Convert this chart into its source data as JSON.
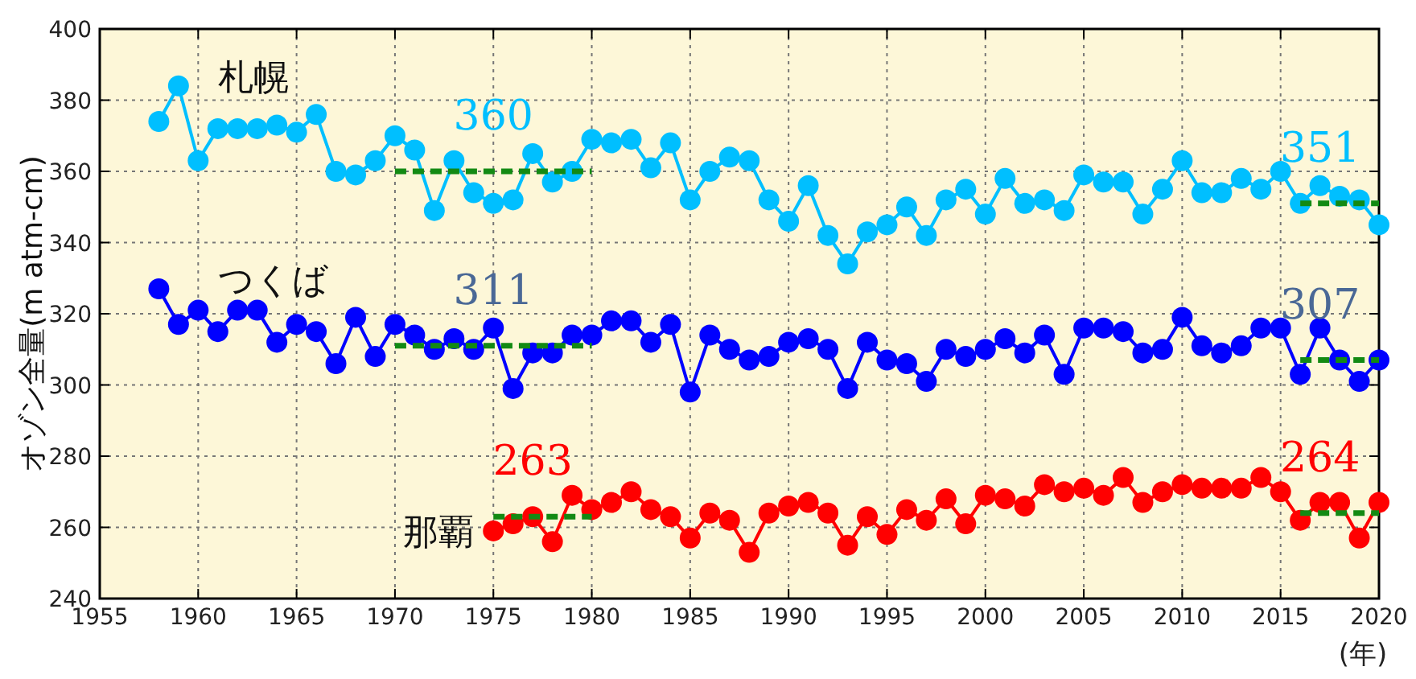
{
  "chart_data": {
    "type": "line",
    "ylabel": "オゾン全量(m atm-cm)",
    "xlabel": "(年)",
    "xlim": [
      1955,
      2020
    ],
    "ylim": [
      240,
      400
    ],
    "xticks": [
      1955,
      1960,
      1965,
      1970,
      1975,
      1980,
      1985,
      1990,
      1995,
      2000,
      2005,
      2010,
      2015,
      2020
    ],
    "yticks": [
      240,
      260,
      280,
      300,
      320,
      340,
      360,
      380,
      400
    ],
    "grid": true,
    "marker": "circle",
    "line_style": "solid",
    "series": [
      {
        "name": "札幌",
        "color": "#00bfff",
        "x": [
          1958,
          1959,
          1960,
          1961,
          1962,
          1963,
          1964,
          1965,
          1966,
          1967,
          1968,
          1969,
          1970,
          1971,
          1972,
          1973,
          1974,
          1975,
          1976,
          1977,
          1978,
          1979,
          1980,
          1981,
          1982,
          1983,
          1984,
          1985,
          1986,
          1987,
          1988,
          1989,
          1990,
          1991,
          1992,
          1993,
          1994,
          1995,
          1996,
          1997,
          1998,
          1999,
          2000,
          2001,
          2002,
          2003,
          2004,
          2005,
          2006,
          2007,
          2008,
          2009,
          2010,
          2011,
          2012,
          2013,
          2014,
          2015,
          2016,
          2017,
          2018,
          2019,
          2020
        ],
        "values": [
          374,
          384,
          363,
          372,
          372,
          372,
          373,
          371,
          376,
          360,
          359,
          363,
          370,
          366,
          349,
          363,
          354,
          351,
          352,
          365,
          357,
          360,
          369,
          368,
          369,
          361,
          368,
          352,
          360,
          364,
          363,
          352,
          346,
          356,
          342,
          334,
          343,
          345,
          350,
          342,
          352,
          355,
          348,
          358,
          351,
          352,
          349,
          359,
          357,
          357,
          348,
          355,
          363,
          354,
          354,
          358,
          355,
          360,
          351,
          356,
          353,
          352,
          345
        ]
      },
      {
        "name": "つくば",
        "color": "#0000ff",
        "x": [
          1958,
          1959,
          1960,
          1961,
          1962,
          1963,
          1964,
          1965,
          1966,
          1967,
          1968,
          1969,
          1970,
          1971,
          1972,
          1973,
          1974,
          1975,
          1976,
          1977,
          1978,
          1979,
          1980,
          1981,
          1982,
          1983,
          1984,
          1985,
          1986,
          1987,
          1988,
          1989,
          1990,
          1991,
          1992,
          1993,
          1994,
          1995,
          1996,
          1997,
          1998,
          1999,
          2000,
          2001,
          2002,
          2003,
          2004,
          2005,
          2006,
          2007,
          2008,
          2009,
          2010,
          2011,
          2012,
          2013,
          2014,
          2015,
          2016,
          2017,
          2018,
          2019,
          2020
        ],
        "values": [
          327,
          317,
          321,
          315,
          321,
          321,
          312,
          317,
          315,
          306,
          319,
          308,
          317,
          314,
          310,
          313,
          310,
          316,
          299,
          309,
          309,
          314,
          314,
          318,
          318,
          312,
          317,
          298,
          314,
          310,
          307,
          308,
          312,
          313,
          310,
          299,
          312,
          307,
          306,
          301,
          310,
          308,
          310,
          313,
          309,
          314,
          303,
          316,
          316,
          315,
          309,
          310,
          319,
          311,
          309,
          311,
          316,
          316,
          303,
          316,
          307,
          301,
          307
        ]
      },
      {
        "name": "那覇",
        "color": "#ff0000",
        "x": [
          1975,
          1976,
          1977,
          1978,
          1979,
          1980,
          1981,
          1982,
          1983,
          1984,
          1985,
          1986,
          1987,
          1988,
          1989,
          1990,
          1991,
          1992,
          1993,
          1994,
          1995,
          1996,
          1997,
          1998,
          1999,
          2000,
          2001,
          2002,
          2003,
          2004,
          2005,
          2006,
          2007,
          2008,
          2009,
          2010,
          2011,
          2012,
          2013,
          2014,
          2015,
          2016,
          2017,
          2018,
          2019,
          2020
        ],
        "values": [
          259,
          261,
          263,
          256,
          269,
          265,
          267,
          270,
          265,
          263,
          257,
          264,
          262,
          253,
          264,
          266,
          267,
          264,
          255,
          263,
          258,
          265,
          262,
          268,
          261,
          269,
          268,
          266,
          272,
          270,
          271,
          269,
          274,
          267,
          270,
          272,
          271,
          271,
          271,
          274,
          270,
          262,
          267,
          267,
          257,
          267
        ]
      },
      {
        "type": "line",
        "color": "#138a13",
        "line_style": "dashed",
        "marker": "none",
        "x": [
          1970,
          1980
        ],
        "values": [
          360,
          360
        ]
      },
      {
        "type": "line",
        "color": "#138a13",
        "line_style": "dashed",
        "marker": "none",
        "x": [
          2016,
          2020
        ],
        "values": [
          351,
          351
        ]
      },
      {
        "type": "line",
        "color": "#138a13",
        "line_style": "dashed",
        "marker": "none",
        "x": [
          1970,
          1980
        ],
        "values": [
          311,
          311
        ]
      },
      {
        "type": "line",
        "color": "#138a13",
        "line_style": "dashed",
        "marker": "none",
        "x": [
          2016,
          2020
        ],
        "values": [
          307,
          307
        ]
      },
      {
        "type": "line",
        "color": "#138a13",
        "line_style": "dashed",
        "marker": "none",
        "x": [
          1975,
          1980
        ],
        "values": [
          263,
          263
        ]
      },
      {
        "type": "line",
        "color": "#138a13",
        "line_style": "dashed",
        "marker": "none",
        "x": [
          2016,
          2020
        ],
        "values": [
          264,
          264
        ]
      }
    ],
    "annotations": [
      {
        "text": "360",
        "x": 1975,
        "y": 360
      },
      {
        "text": "351",
        "x": 2017,
        "y": 351
      },
      {
        "text": "311",
        "x": 1975,
        "y": 311
      },
      {
        "text": "307",
        "x": 2017,
        "y": 307
      },
      {
        "text": "263",
        "x": 1977,
        "y": 263
      },
      {
        "text": "264",
        "x": 2017,
        "y": 264
      }
    ]
  }
}
